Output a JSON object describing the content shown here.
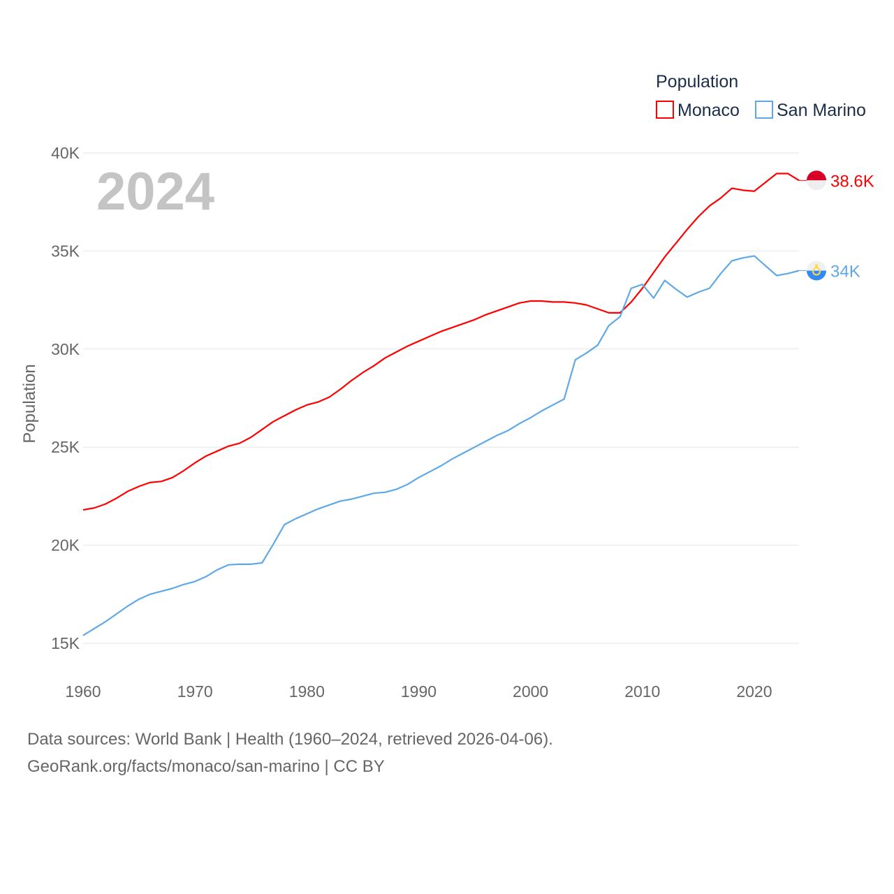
{
  "chart_data": {
    "type": "line",
    "title": "",
    "year_label": "2024",
    "xlabel": "",
    "ylabel": "Population",
    "xlim": [
      1960,
      2024
    ],
    "ylim": [
      15000,
      40000
    ],
    "x_ticks": [
      "1960",
      "1970",
      "1980",
      "1990",
      "2000",
      "2010",
      "2020"
    ],
    "x_tick_values": [
      1960,
      1970,
      1980,
      1990,
      2000,
      2010,
      2020
    ],
    "y_ticks": [
      "15K",
      "20K",
      "25K",
      "30K",
      "35K",
      "40K"
    ],
    "y_tick_values": [
      15000,
      20000,
      25000,
      30000,
      35000,
      40000
    ],
    "grid": true,
    "legend": {
      "title": "Population",
      "placement": "top-right"
    },
    "x_start": 1960,
    "series": [
      {
        "name": "Monaco",
        "color": "#ff0000",
        "end_label": "38.6K",
        "flag": "monaco-flag-icon",
        "values": [
          21800,
          21900,
          22100,
          22400,
          22750,
          23000,
          23200,
          23250,
          23450,
          23800,
          24200,
          24550,
          24800,
          25050,
          25200,
          25500,
          25900,
          26300,
          26600,
          26900,
          27150,
          27300,
          27550,
          27950,
          28400,
          28800,
          29150,
          29550,
          29850,
          30150,
          30400,
          30650,
          30900,
          31100,
          31300,
          31500,
          31750,
          31950,
          32150,
          32350,
          32450,
          32450,
          32400,
          32400,
          32350,
          32250,
          32050,
          31850,
          31850,
          32400,
          33100,
          33900,
          34700,
          35400,
          36100,
          36750,
          37300,
          37700,
          38200,
          38100,
          38050,
          38500,
          38950,
          38950,
          38600
        ]
      },
      {
        "name": "San Marino",
        "color": "#5fa8e8",
        "end_label": "34K",
        "flag": "san-marino-flag-icon",
        "values": [
          15400,
          15750,
          16100,
          16500,
          16900,
          17250,
          17500,
          17650,
          17800,
          18000,
          18150,
          18400,
          18750,
          19000,
          19030,
          19030,
          19100,
          20050,
          21050,
          21350,
          21600,
          21850,
          22050,
          22250,
          22350,
          22500,
          22650,
          22700,
          22850,
          23100,
          23450,
          23750,
          24050,
          24400,
          24700,
          25000,
          25300,
          25600,
          25850,
          26200,
          26500,
          26850,
          27150,
          27450,
          29450,
          29800,
          30200,
          31200,
          31650,
          33100,
          33300,
          32600,
          33500,
          33050,
          32650,
          32900,
          33100,
          33850,
          34500,
          34650,
          34750,
          34250,
          33750,
          33850,
          34000
        ]
      }
    ]
  },
  "footer": {
    "line1": "Data sources: World Bank | Health (1960–2024, retrieved 2026-04-06).",
    "line2": "GeoRank.org/facts/monaco/san-marino | CC BY"
  }
}
